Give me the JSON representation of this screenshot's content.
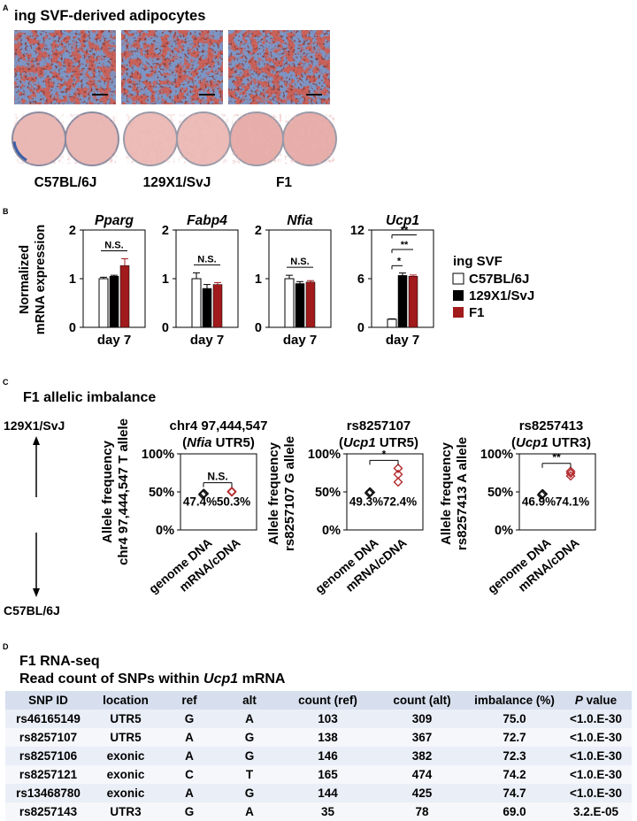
{
  "panelA": {
    "letter": "A",
    "title": "ing SVF-derived adipocytes",
    "strains": [
      "C57BL/6J",
      "129X1/SvJ",
      "F1"
    ]
  },
  "panelB": {
    "letter": "B",
    "ylabel_line1": "Normalized",
    "ylabel_line2": "mRNA expression",
    "legend_title": "ing SVF",
    "legend": [
      {
        "name": "C57BL/6J",
        "color": "#ffffff"
      },
      {
        "name": "129X1/SvJ",
        "color": "#000000"
      },
      {
        "name": "F1",
        "color": "#a11a1c"
      }
    ]
  },
  "panelC": {
    "letter": "C",
    "title": "F1 allelic imbalance",
    "arrow_top": "129X1/SvJ",
    "arrow_bottom": "C57BL/6J"
  },
  "panelD": {
    "letter": "D",
    "title_line1": "F1 RNA-seq",
    "title_line2_prefix": "Read count of SNPs within ",
    "title_line2_gene": "Ucp1",
    "title_line2_suffix": " mRNA",
    "columns": [
      "SNP ID",
      "location",
      "ref",
      "alt",
      "count (ref)",
      "count (alt)",
      "imbalance (%)",
      "value"
    ],
    "p_prefix": "P",
    "rows": [
      [
        "rs46165149",
        "UTR5",
        "G",
        "A",
        "103",
        "309",
        "75.0",
        "<1.0.E-30"
      ],
      [
        "rs8257107",
        "UTR5",
        "A",
        "G",
        "138",
        "367",
        "72.7",
        "<1.0.E-30"
      ],
      [
        "rs8257106",
        "exonic",
        "A",
        "G",
        "146",
        "382",
        "72.3",
        "<1.0.E-30"
      ],
      [
        "rs8257121",
        "exonic",
        "C",
        "T",
        "165",
        "474",
        "74.2",
        "<1.0.E-30"
      ],
      [
        "rs13468780",
        "exonic",
        "A",
        "G",
        "144",
        "425",
        "74.7",
        "<1.0.E-30"
      ],
      [
        "rs8257143",
        "UTR3",
        "G",
        "A",
        "35",
        "78",
        "69.0",
        "3.2.E-05"
      ]
    ]
  },
  "chart_data": [
    {
      "type": "bar",
      "title": "Pparg",
      "categories": [
        "day 7"
      ],
      "ylim": [
        0,
        2
      ],
      "yticks": [
        "0",
        "1",
        "2"
      ],
      "series": [
        {
          "name": "C57BL/6J",
          "values": [
            1.0
          ],
          "error": [
            0.03
          ]
        },
        {
          "name": "129X1/SvJ",
          "values": [
            1.05
          ],
          "error": [
            0.02
          ]
        },
        {
          "name": "F1",
          "values": [
            1.27
          ],
          "error": [
            0.14
          ]
        }
      ],
      "annotations": [
        "N.S."
      ]
    },
    {
      "type": "bar",
      "title": "Fabp4",
      "categories": [
        "day 7"
      ],
      "ylim": [
        0,
        2
      ],
      "yticks": [
        "0",
        "1",
        "2"
      ],
      "series": [
        {
          "name": "C57BL/6J",
          "values": [
            1.0
          ],
          "error": [
            0.12
          ]
        },
        {
          "name": "129X1/SvJ",
          "values": [
            0.8
          ],
          "error": [
            0.08
          ]
        },
        {
          "name": "F1",
          "values": [
            0.88
          ],
          "error": [
            0.04
          ]
        }
      ],
      "annotations": [
        "N.S."
      ]
    },
    {
      "type": "bar",
      "title": "Nfia",
      "categories": [
        "day 7"
      ],
      "ylim": [
        0,
        2
      ],
      "yticks": [
        "0",
        "1",
        "2"
      ],
      "series": [
        {
          "name": "C57BL/6J",
          "values": [
            1.0
          ],
          "error": [
            0.07
          ]
        },
        {
          "name": "129X1/SvJ",
          "values": [
            0.9
          ],
          "error": [
            0.04
          ]
        },
        {
          "name": "F1",
          "values": [
            0.93
          ],
          "error": [
            0.03
          ]
        }
      ],
      "annotations": [
        "N.S."
      ]
    },
    {
      "type": "bar",
      "title": "Ucp1",
      "categories": [
        "day 7"
      ],
      "ylim": [
        0,
        12
      ],
      "yticks": [
        "0",
        "6",
        "12"
      ],
      "series": [
        {
          "name": "C57BL/6J",
          "values": [
            1.0
          ],
          "error": [
            0.05
          ]
        },
        {
          "name": "129X1/SvJ",
          "values": [
            6.4
          ],
          "error": [
            0.3
          ]
        },
        {
          "name": "F1",
          "values": [
            6.3
          ],
          "error": [
            0.15
          ]
        }
      ],
      "annotations": [
        "*",
        "**",
        "**"
      ]
    },
    {
      "type": "scatter",
      "title_line1": "chr4 97,444,547",
      "title_gene": "Nfia",
      "title_suffix": " UTR5",
      "ylabel_line1": "Allele frequency",
      "ylabel_line2": "chr4 97,444,547 T allele",
      "categories": [
        "genome DNA",
        "mRNA/cDNA"
      ],
      "ylim": [
        0,
        100
      ],
      "yticks": [
        "0%",
        "50%",
        "100%"
      ],
      "points": [
        [
          46.5,
          48.0,
          47.7
        ],
        [
          49.8,
          50.6,
          50.5
        ]
      ],
      "mean_labels": [
        "47.4%",
        "50.3%"
      ],
      "annotation": "N.S."
    },
    {
      "type": "scatter",
      "title_line1": "rs8257107",
      "title_gene": "Ucp1",
      "title_suffix": " UTR5",
      "ylabel_line1": "Allele frequency",
      "ylabel_line2": "rs8257107 G allele",
      "categories": [
        "genome DNA",
        "mRNA/cDNA"
      ],
      "ylim": [
        0,
        100
      ],
      "yticks": [
        "0%",
        "50%",
        "100%"
      ],
      "points": [
        [
          48.5,
          50.0,
          49.4
        ],
        [
          63.0,
          73.0,
          81.0
        ]
      ],
      "mean_labels": [
        "49.3%",
        "72.4%"
      ],
      "annotation": "*"
    },
    {
      "type": "scatter",
      "title_line1": "rs8257413",
      "title_gene": "Ucp1",
      "title_suffix": " UTR3",
      "ylabel_line1": "Allele frequency",
      "ylabel_line2": "rs8257413 A allele",
      "categories": [
        "genome DNA",
        "mRNA/cDNA"
      ],
      "ylim": [
        0,
        100
      ],
      "yticks": [
        "0%",
        "50%",
        "100%"
      ],
      "points": [
        [
          46.0,
          47.5,
          47.2
        ],
        [
          71.0,
          74.5,
          77.0
        ]
      ],
      "mean_labels": [
        "46.9%",
        "74.1%"
      ],
      "annotation": "**"
    }
  ]
}
